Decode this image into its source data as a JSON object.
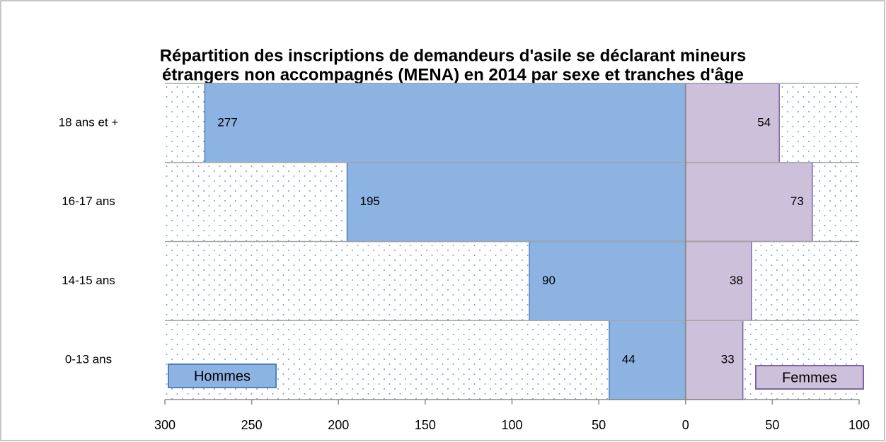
{
  "chart_data": {
    "type": "pyramid",
    "title": [
      "Répartition des inscriptions de demandeurs d'asile se déclarant mineurs",
      "étrangers non accompagnés (MENA) en 2014 par sexe et tranches d'âge"
    ],
    "categories": [
      "18 ans et +",
      "16-17 ans",
      "14-15 ans",
      "0-13 ans"
    ],
    "series": [
      {
        "name": "Hommes",
        "color": "#8db3e2",
        "values": [
          -277,
          -195,
          -90,
          -44
        ],
        "value_labels": [
          "277",
          "195",
          "90",
          "44"
        ]
      },
      {
        "name": "Femmes",
        "color": "#ccc0da",
        "values": [
          54,
          73,
          38,
          33
        ]
      }
    ],
    "xlim": [
      -300,
      100
    ],
    "xticks": [
      {
        "value": -300,
        "label": "300"
      },
      {
        "value": -250,
        "label": "250"
      },
      {
        "value": -200,
        "label": "200"
      },
      {
        "value": -150,
        "label": "150"
      },
      {
        "value": -100,
        "label": "100"
      },
      {
        "value": -50,
        "label": "50"
      },
      0,
      50,
      100
    ],
    "grid": true
  }
}
